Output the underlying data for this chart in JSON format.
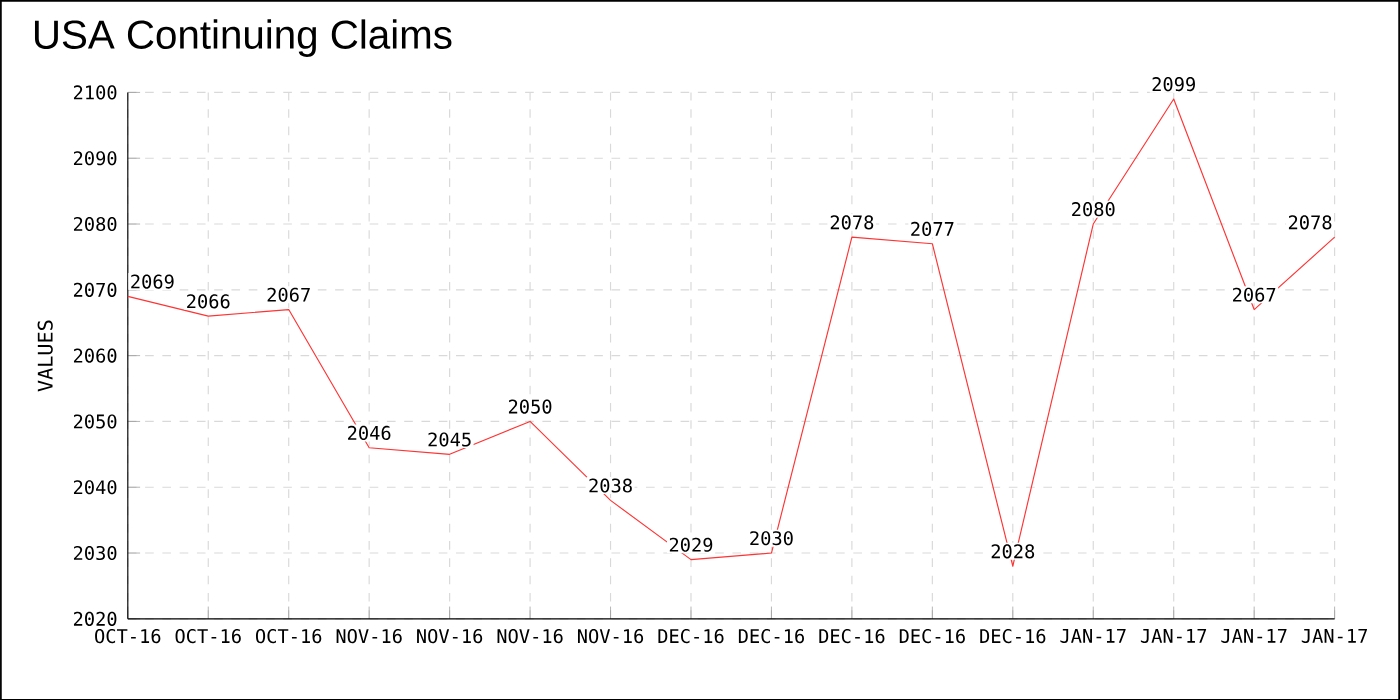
{
  "chart_data": {
    "type": "line",
    "title": "USA Continuing Claims",
    "ylabel": "VALUES",
    "categories": [
      "OCT-16",
      "OCT-16",
      "OCT-16",
      "NOV-16",
      "NOV-16",
      "NOV-16",
      "NOV-16",
      "DEC-16",
      "DEC-16",
      "DEC-16",
      "DEC-16",
      "DEC-16",
      "JAN-17",
      "JAN-17",
      "JAN-17",
      "JAN-17"
    ],
    "values": [
      2069,
      2066,
      2067,
      2046,
      2045,
      2050,
      2038,
      2029,
      2030,
      2078,
      2077,
      2028,
      2080,
      2099,
      2067,
      2078
    ],
    "color": "#ff3333",
    "ylim": [
      2020,
      2100
    ],
    "yticks": [
      2020,
      2030,
      2040,
      2050,
      2060,
      2070,
      2080,
      2090,
      2100
    ],
    "grid": true,
    "data_labels": true,
    "marker": "none",
    "line_style": "solid"
  }
}
